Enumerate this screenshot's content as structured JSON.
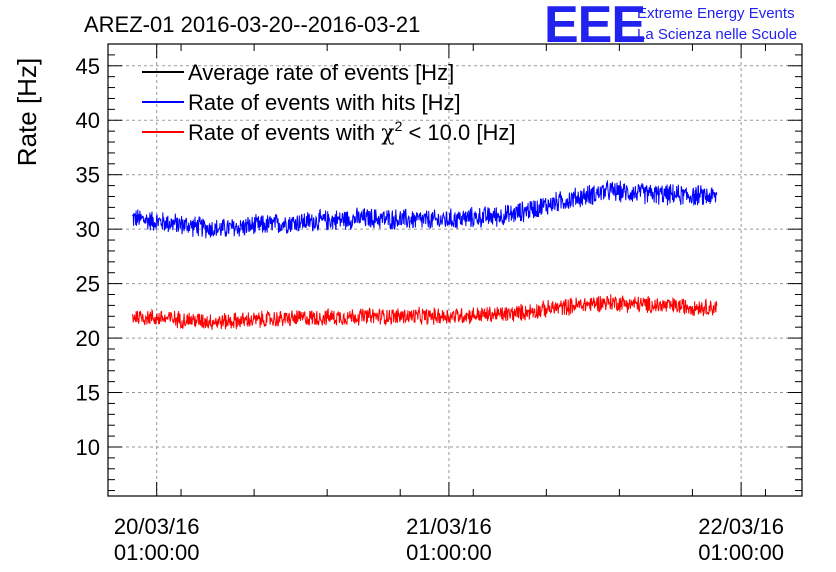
{
  "logo": {
    "mark": "EEE",
    "line1": "Extreme Energy Events",
    "line2": "La Scienza nelle Scuole",
    "color": "#2222ee"
  },
  "chart_data": {
    "type": "line",
    "title": "AREZ-01 2016-03-20--2016-03-21",
    "ylabel": "Rate [Hz]",
    "xlabel": "",
    "ylim": [
      5.5,
      47
    ],
    "yticks": [
      10,
      15,
      20,
      25,
      30,
      35,
      40,
      45
    ],
    "xlim": [
      "2016-03-19 21:00:00",
      "2016-03-22 06:00:00"
    ],
    "x_ticks": [
      {
        "x": "2016-03-20 01:00:00",
        "date": "20/03/16",
        "time": "01:00:00"
      },
      {
        "x": "2016-03-21 01:00:00",
        "date": "21/03/16",
        "time": "01:00:00"
      },
      {
        "x": "2016-03-22 01:00:00",
        "date": "22/03/16",
        "time": "01:00:00"
      }
    ],
    "grid": true,
    "legend_position": "top-left",
    "series": [
      {
        "name": "Average rate of events [Hz]",
        "color": "#000000",
        "x": [],
        "y": []
      },
      {
        "name": "Rate of events with hits [Hz]",
        "color": "#0000ff",
        "x_start": "2016-03-19 23:00:00",
        "x_end": "2016-03-21 23:00:00",
        "noise_amplitude": 1.1,
        "x": [
          "2016-03-19 23:00:00",
          "2016-03-20 06:00:00",
          "2016-03-20 12:00:00",
          "2016-03-20 18:00:00",
          "2016-03-21 00:00:00",
          "2016-03-21 06:00:00",
          "2016-03-21 10:00:00",
          "2016-03-21 14:00:00",
          "2016-03-21 18:00:00",
          "2016-03-21 23:00:00"
        ],
        "y": [
          31.0,
          30.0,
          30.6,
          31.0,
          30.8,
          31.3,
          32.5,
          33.5,
          33.2,
          33.0
        ]
      },
      {
        "name": "Rate of events with χ² < 10.0 [Hz]",
        "legend_parts": [
          "Rate of events with ",
          "χ",
          "2",
          " < 10.0 [Hz]"
        ],
        "color": "#ff0000",
        "x_start": "2016-03-19 23:00:00",
        "x_end": "2016-03-21 23:00:00",
        "noise_amplitude": 0.9,
        "x": [
          "2016-03-19 23:00:00",
          "2016-03-20 06:00:00",
          "2016-03-20 12:00:00",
          "2016-03-20 18:00:00",
          "2016-03-21 00:00:00",
          "2016-03-21 06:00:00",
          "2016-03-21 10:00:00",
          "2016-03-21 14:00:00",
          "2016-03-21 18:00:00",
          "2016-03-21 23:00:00"
        ],
        "y": [
          22.0,
          21.5,
          21.8,
          22.0,
          22.0,
          22.2,
          22.8,
          23.3,
          23.0,
          22.8
        ]
      }
    ]
  }
}
